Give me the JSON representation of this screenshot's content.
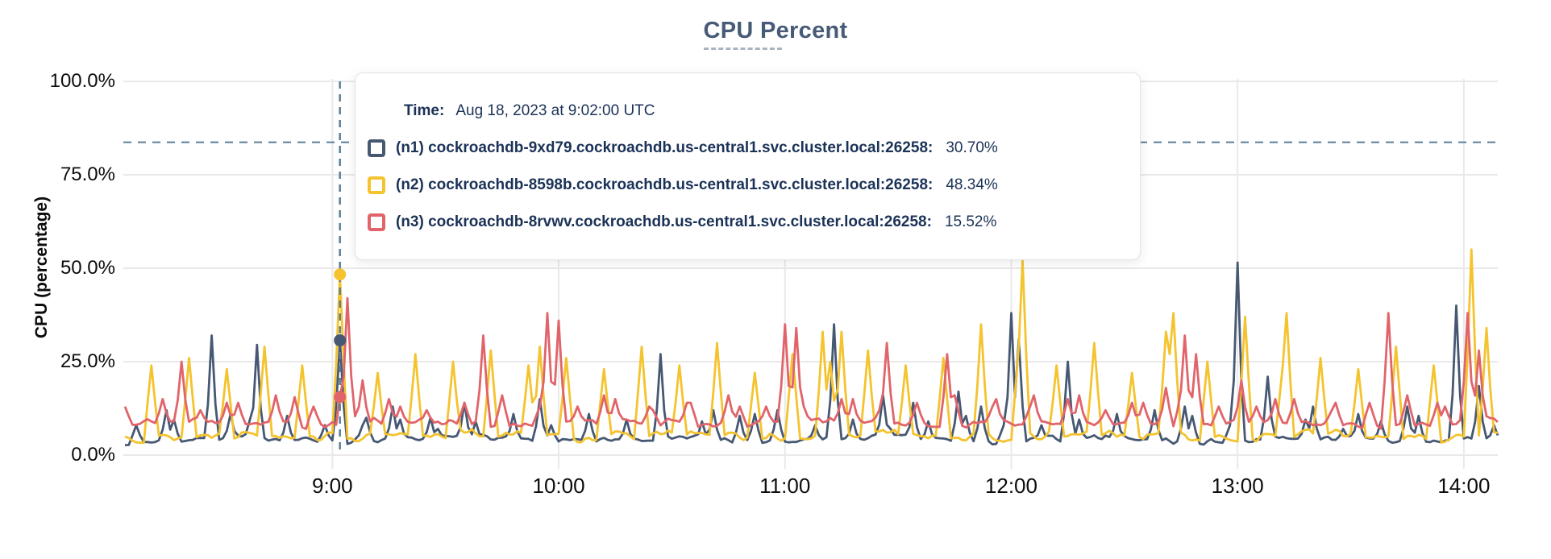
{
  "page": {
    "background": "#ffffff"
  },
  "chart_data": {
    "type": "line",
    "title": "CPU Percent",
    "ylabel": "CPU (percentage)",
    "ylim": [
      0,
      100
    ],
    "grid": true,
    "legend_position": "tooltip-overlay",
    "y_ticks": [
      {
        "value": 100,
        "label": "100.0%"
      },
      {
        "value": 75,
        "label": "75.0%"
      },
      {
        "value": 50,
        "label": "50.0%"
      },
      {
        "value": 25,
        "label": "25.0%"
      },
      {
        "value": 0,
        "label": "0.0%"
      }
    ],
    "x_ticks": [
      {
        "minutes": 540,
        "label": "9:00"
      },
      {
        "minutes": 600,
        "label": "10:00"
      },
      {
        "minutes": 660,
        "label": "11:00"
      },
      {
        "minutes": 720,
        "label": "12:00"
      },
      {
        "minutes": 780,
        "label": "13:00"
      },
      {
        "minutes": 840,
        "label": "14:00"
      }
    ],
    "x_range_minutes": [
      485,
      849
    ],
    "threshold_line": {
      "value": 83.7,
      "style": "dashed",
      "color": "#5d7e96"
    },
    "hover_line": {
      "time_minutes": 542,
      "time_label": "Aug 18, 2023 at 9:02:00 UTC",
      "style": "dashed",
      "color": "#5d7e96"
    },
    "series": [
      {
        "id": "n1",
        "name": "(n1) cockroachdb-9xd79.cockroachdb.us-central1.svc.cluster.local:26258:",
        "color": "#475873",
        "hover_value": 30.7,
        "base": 4.2,
        "noise_amp": 1.0,
        "seed": 7,
        "spike_halfwidth": 1.5,
        "periodic": {
          "period": 10,
          "offset": 8,
          "halfwidth": 1.4,
          "peaks": [
            8,
            9.5,
            7,
            9,
            10.5,
            8
          ]
        },
        "spikes": [
          [
            496,
            12
          ],
          [
            508,
            32
          ],
          [
            513,
            11
          ],
          [
            520,
            29.5
          ],
          [
            542,
            30.7
          ],
          [
            549,
            10
          ],
          [
            556,
            13
          ],
          [
            566,
            10
          ],
          [
            575,
            14
          ],
          [
            588,
            11
          ],
          [
            595,
            15
          ],
          [
            608,
            11
          ],
          [
            627,
            27
          ],
          [
            641,
            12
          ],
          [
            652,
            11
          ],
          [
            658,
            12
          ],
          [
            673,
            35
          ],
          [
            686,
            16
          ],
          [
            694,
            14
          ],
          [
            706,
            17
          ],
          [
            712,
            13
          ],
          [
            720,
            38
          ],
          [
            722,
            31
          ],
          [
            735,
            25
          ],
          [
            748,
            11
          ],
          [
            758,
            12
          ],
          [
            766,
            13
          ],
          [
            780,
            51.5
          ],
          [
            788,
            21
          ],
          [
            800,
            13
          ],
          [
            812,
            11
          ],
          [
            825,
            13
          ],
          [
            838,
            40
          ],
          [
            844,
            18.5
          ]
        ]
      },
      {
        "id": "n2",
        "name": "(n2) cockroachdb-8598b.cockroachdb.us-central1.svc.cluster.local:26258:",
        "color": "#f4c32e",
        "hover_value": 48.34,
        "base": 5.2,
        "noise_amp": 1.4,
        "seed": 13,
        "spike_halfwidth": 1.8,
        "periodic": {
          "period": 10,
          "offset": 2,
          "halfwidth": 1.9,
          "peaks": [
            26,
            23,
            29,
            24,
            30,
            22,
            27,
            25,
            28,
            24
          ]
        },
        "spikes": [
          [
            542,
            48.34
          ],
          [
            595,
            29
          ],
          [
            670,
            33
          ],
          [
            675,
            33
          ],
          [
            712,
            35
          ],
          [
            723,
            52
          ],
          [
            761,
            33
          ],
          [
            763,
            38
          ],
          [
            782,
            37
          ],
          [
            793,
            38
          ],
          [
            842,
            55
          ],
          [
            846,
            34
          ]
        ]
      },
      {
        "id": "n3",
        "name": "(n3) cockroachdb-8rvwv.cockroachdb.us-central1.svc.cluster.local:26258:",
        "color": "#e1646a",
        "hover_value": 15.52,
        "base": 8.6,
        "noise_amp": 1.2,
        "seed": 21,
        "spike_halfwidth": 1.6,
        "periodic": {
          "period": 10,
          "offset": 5,
          "halfwidth": 1.7,
          "peaks": [
            13,
            15,
            12,
            14,
            16,
            13
          ]
        },
        "spikes": [
          [
            500,
            25
          ],
          [
            512,
            14
          ],
          [
            530,
            15.5
          ],
          [
            544,
            42
          ],
          [
            548,
            20
          ],
          [
            558,
            13
          ],
          [
            580,
            32
          ],
          [
            597,
            38
          ],
          [
            600,
            36
          ],
          [
            612,
            16
          ],
          [
            624,
            13
          ],
          [
            634,
            14
          ],
          [
            648,
            13
          ],
          [
            660,
            35
          ],
          [
            663,
            34
          ],
          [
            678,
            15
          ],
          [
            687,
            30
          ],
          [
            703,
            27
          ],
          [
            716,
            15
          ],
          [
            726,
            16
          ],
          [
            738,
            16
          ],
          [
            752,
            14
          ],
          [
            761,
            18
          ],
          [
            766,
            32
          ],
          [
            769,
            27
          ],
          [
            781,
            20
          ],
          [
            790,
            15
          ],
          [
            806,
            14
          ],
          [
            820,
            38
          ],
          [
            833,
            14
          ],
          [
            841,
            38
          ],
          [
            844,
            28
          ]
        ]
      }
    ]
  },
  "tooltip": {
    "time_label": "Time:",
    "time_value": "Aug 18, 2023 at 9:02:00 UTC",
    "rows": [
      {
        "color": "#475873",
        "label": "(n1) cockroachdb-9xd79.cockroachdb.us-central1.svc.cluster.local:26258:",
        "value": "30.70%"
      },
      {
        "color": "#f4c32e",
        "label": "(n2) cockroachdb-8598b.cockroachdb.us-central1.svc.cluster.local:26258:",
        "value": "48.34%"
      },
      {
        "color": "#e1646a",
        "label": "(n3) cockroachdb-8rvwv.cockroachdb.us-central1.svc.cluster.local:26258:",
        "value": "15.52%"
      }
    ]
  }
}
